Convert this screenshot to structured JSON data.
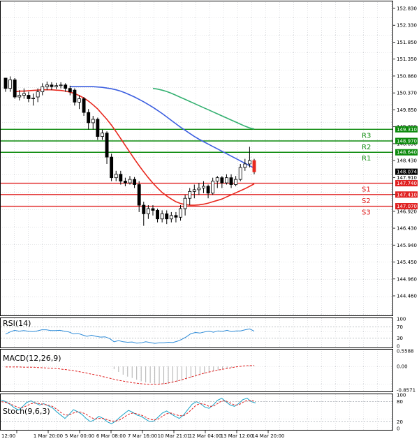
{
  "chart_data": {
    "type": "candlestick",
    "instrument_panel": {
      "price_ticks": [
        "152.830",
        "152.330",
        "151.850",
        "151.350",
        "150.860",
        "150.370",
        "149.850",
        "149.390",
        "148.890",
        "148.430",
        "147.910",
        "147.430",
        "146.920",
        "146.430",
        "145.940",
        "145.450",
        "144.960",
        "144.460"
      ],
      "ylim": [
        144.46,
        152.83
      ],
      "current_price": "148.074",
      "time_labels": [
        "12:00",
        "1 Mar 20:00",
        "5 Mar 00:00",
        "6 Mar 08:00",
        "7 Mar 16:00",
        "10 Mar 21:01",
        "12 Mar 04:00",
        "13 Mar 12:00",
        "14 Mar 20:00"
      ],
      "levels": [
        {
          "name": "R3",
          "value": 149.31,
          "tag": "149.310",
          "color": "#0c8a0c"
        },
        {
          "name": "R2",
          "value": 148.97,
          "tag": "148.970",
          "color": "#0c8a0c"
        },
        {
          "name": "R1",
          "value": 148.64,
          "tag": "148.640",
          "color": "#0c8a0c"
        },
        {
          "name": "S1",
          "value": 147.74,
          "tag": "147.740",
          "color": "#e02020"
        },
        {
          "name": "S2",
          "value": 147.41,
          "tag": "147.410",
          "color": "#e02020"
        },
        {
          "name": "S3",
          "value": 147.07,
          "tag": "147.070",
          "color": "#e02020"
        }
      ],
      "candles": [
        [
          150.8,
          150.5,
          150.7,
          150.4
        ],
        [
          150.5,
          150.75,
          150.85,
          150.4
        ],
        [
          150.75,
          150.25,
          150.8,
          150.2
        ],
        [
          150.25,
          150.3,
          150.45,
          150.15
        ],
        [
          150.3,
          150.35,
          150.5,
          150.2
        ],
        [
          150.3,
          150.2,
          150.4,
          150.1
        ],
        [
          150.2,
          150.22,
          150.35,
          150.0
        ],
        [
          150.25,
          150.4,
          150.5,
          150.1
        ],
        [
          150.4,
          150.55,
          150.65,
          150.3
        ],
        [
          150.55,
          150.6,
          150.7,
          150.45
        ],
        [
          150.6,
          150.55,
          150.68,
          150.45
        ],
        [
          150.55,
          150.58,
          150.66,
          150.48
        ],
        [
          150.58,
          150.6,
          150.68,
          150.5
        ],
        [
          150.6,
          150.5,
          150.65,
          150.4
        ],
        [
          150.5,
          150.4,
          150.58,
          150.3
        ],
        [
          150.45,
          150.1,
          150.5,
          150.0
        ],
        [
          150.1,
          150.2,
          150.3,
          149.9
        ],
        [
          150.2,
          149.8,
          150.25,
          149.7
        ],
        [
          149.8,
          149.5,
          149.9,
          149.3
        ],
        [
          149.5,
          149.6,
          149.7,
          149.3
        ],
        [
          149.6,
          149.1,
          149.65,
          149.0
        ],
        [
          149.1,
          149.2,
          149.3,
          149.0
        ],
        [
          149.2,
          148.5,
          149.25,
          148.3
        ],
        [
          148.5,
          147.9,
          148.6,
          147.8
        ],
        [
          147.9,
          148.0,
          148.1,
          147.8
        ],
        [
          148.0,
          147.8,
          148.1,
          147.7
        ],
        [
          147.8,
          147.75,
          147.9,
          147.65
        ],
        [
          147.75,
          147.85,
          147.95,
          147.7
        ],
        [
          147.85,
          147.7,
          147.92,
          147.6
        ],
        [
          147.7,
          147.1,
          147.8,
          146.9
        ],
        [
          147.1,
          146.85,
          147.2,
          146.5
        ],
        [
          146.85,
          147.0,
          147.1,
          146.7
        ],
        [
          147.0,
          146.95,
          147.1,
          146.8
        ],
        [
          146.95,
          146.7,
          147.0,
          146.6
        ],
        [
          146.7,
          146.85,
          146.95,
          146.6
        ],
        [
          146.85,
          146.7,
          146.95,
          146.55
        ],
        [
          146.7,
          146.8,
          146.9,
          146.6
        ],
        [
          146.8,
          146.75,
          146.9,
          146.6
        ],
        [
          146.75,
          147.0,
          147.1,
          146.65
        ],
        [
          147.0,
          147.3,
          147.4,
          146.8
        ],
        [
          147.3,
          147.5,
          147.6,
          147.1
        ],
        [
          147.5,
          147.55,
          147.7,
          147.3
        ],
        [
          147.55,
          147.6,
          147.75,
          147.4
        ],
        [
          147.6,
          147.65,
          147.8,
          147.45
        ],
        [
          147.65,
          147.45,
          147.7,
          147.3
        ],
        [
          147.45,
          147.8,
          147.9,
          147.4
        ],
        [
          147.8,
          147.9,
          147.95,
          147.6
        ],
        [
          147.9,
          147.75,
          147.95,
          147.6
        ],
        [
          147.75,
          147.9,
          148.0,
          147.7
        ],
        [
          147.9,
          147.7,
          148.0,
          147.6
        ],
        [
          147.7,
          147.85,
          147.95,
          147.65
        ],
        [
          147.85,
          148.2,
          148.3,
          147.8
        ],
        [
          148.2,
          148.3,
          148.45,
          148.1
        ],
        [
          148.3,
          148.4,
          148.8,
          148.2
        ],
        [
          148.4,
          148.07,
          148.45,
          148.0
        ]
      ],
      "ma_fast": [
        150.4,
        150.42,
        150.42,
        150.43,
        150.44,
        150.45,
        150.46,
        150.46,
        150.46,
        150.45,
        150.44,
        150.42,
        150.39,
        150.35,
        150.29,
        150.22,
        150.13,
        150.02,
        149.9,
        149.75,
        149.6,
        149.43,
        149.24,
        149.04,
        148.84,
        148.64,
        148.44,
        148.25,
        148.07,
        147.9,
        147.74,
        147.6,
        147.47,
        147.37,
        147.28,
        147.2,
        147.15,
        147.12,
        147.1,
        147.1,
        147.11,
        147.13,
        147.16,
        147.2,
        147.24,
        147.28,
        147.34,
        147.4,
        147.46,
        147.52,
        147.58,
        147.65,
        147.72
      ],
      "ma_mid": [
        150.55,
        150.55,
        150.55,
        150.55,
        150.55,
        150.55,
        150.54,
        150.53,
        150.51,
        150.49,
        150.46,
        150.42,
        150.37,
        150.31,
        150.25,
        150.18,
        150.11,
        150.03,
        149.95,
        149.86,
        149.77,
        149.67,
        149.57,
        149.47,
        149.37,
        149.28,
        149.19,
        149.1,
        149.02,
        148.95,
        148.88,
        148.81,
        148.74,
        148.67,
        148.6,
        148.53,
        148.46,
        148.39,
        148.32,
        148.25,
        148.18
      ],
      "ma_slow": [
        150.5,
        150.48,
        150.45,
        150.41,
        150.36,
        150.3,
        150.24,
        150.18,
        150.12,
        150.06,
        150.0,
        149.94,
        149.88,
        149.82,
        149.76,
        149.7,
        149.64,
        149.58,
        149.52,
        149.46,
        149.4,
        149.35,
        149.32
      ],
      "series": [
        {
          "name": "ma_fast",
          "color": "#e8281e"
        },
        {
          "name": "ma_mid",
          "color": "#3c5fe0"
        },
        {
          "name": "ma_slow",
          "color": "#33b070"
        }
      ]
    },
    "rsi_panel": {
      "label": "RSI(14)",
      "ticks": [
        "100",
        "70",
        "30",
        "0"
      ],
      "ylim": [
        0,
        100
      ],
      "values": [
        44,
        52,
        58,
        55,
        57,
        55,
        53,
        56,
        60,
        60,
        57,
        57,
        58,
        55,
        52,
        45,
        47,
        41,
        36,
        40,
        36,
        33,
        34,
        28,
        16,
        20,
        16,
        14,
        15,
        11,
        12,
        16,
        13,
        10,
        12,
        12,
        14,
        13,
        18,
        25,
        34,
        46,
        50,
        48,
        52,
        55,
        51,
        56,
        54,
        58,
        53,
        56,
        56,
        60,
        63,
        55
      ]
    },
    "macd_panel": {
      "label": "MACD(12,26,9)",
      "ticks": [
        "0.5588",
        "0.00",
        "-0.8571"
      ],
      "ylim": [
        -0.8571,
        0.5588
      ],
      "histogram": [
        0,
        0,
        0,
        0,
        0,
        0,
        0,
        0,
        0,
        0,
        0,
        0,
        0,
        0,
        0,
        0,
        0,
        0,
        0,
        0,
        0,
        0,
        0,
        0,
        -0.1,
        -0.2,
        -0.3,
        -0.37,
        -0.42,
        -0.48,
        -0.54,
        -0.58,
        -0.6,
        -0.62,
        -0.63,
        -0.64,
        -0.63,
        -0.6,
        -0.57,
        -0.52,
        -0.47,
        -0.42,
        -0.37,
        -0.32,
        -0.27,
        -0.22,
        -0.18,
        -0.14,
        -0.1,
        -0.07,
        -0.04,
        -0.02,
        0.0,
        0.01,
        0.02,
        0.02
      ],
      "signal": [
        -0.02,
        -0.02,
        -0.02,
        -0.02,
        -0.03,
        -0.03,
        -0.03,
        -0.04,
        -0.05,
        -0.06,
        -0.07,
        -0.08,
        -0.1,
        -0.12,
        -0.14,
        -0.17,
        -0.2,
        -0.23,
        -0.27,
        -0.3,
        -0.34,
        -0.38,
        -0.42,
        -0.46,
        -0.5,
        -0.53,
        -0.56,
        -0.59,
        -0.61,
        -0.63,
        -0.645,
        -0.65,
        -0.65,
        -0.64,
        -0.62,
        -0.59,
        -0.55,
        -0.51,
        -0.46,
        -0.41,
        -0.36,
        -0.31,
        -0.26,
        -0.22,
        -0.18,
        -0.14,
        -0.11,
        -0.08,
        -0.05,
        -0.02,
        0.0,
        0.02,
        0.03,
        0.04
      ]
    },
    "stoch_panel": {
      "label": "Stoch(9,6,3)",
      "ticks": [
        "100",
        "80",
        "20",
        "0"
      ],
      "ylim": [
        0,
        100
      ],
      "k": [
        85,
        80,
        72,
        62,
        55,
        65,
        78,
        82,
        76,
        70,
        74,
        68,
        62,
        50,
        40,
        30,
        42,
        56,
        50,
        42,
        30,
        20,
        26,
        36,
        30,
        20,
        14,
        22,
        34,
        44,
        54,
        48,
        40,
        36,
        28,
        20,
        22,
        34,
        46,
        52,
        44,
        36,
        30,
        40,
        56,
        72,
        80,
        74,
        64,
        60,
        70,
        84,
        90,
        80,
        70,
        66,
        74,
        86,
        90,
        80,
        76
      ],
      "d": [
        80,
        78,
        74,
        68,
        62,
        62,
        68,
        74,
        76,
        74,
        72,
        70,
        66,
        58,
        48,
        40,
        40,
        46,
        50,
        48,
        42,
        34,
        28,
        30,
        30,
        26,
        22,
        22,
        26,
        34,
        42,
        46,
        44,
        40,
        34,
        28,
        25,
        28,
        36,
        44,
        46,
        42,
        38,
        38,
        46,
        58,
        70,
        74,
        72,
        66,
        66,
        74,
        82,
        82,
        76,
        70,
        70,
        78,
        84,
        84,
        80
      ]
    }
  }
}
